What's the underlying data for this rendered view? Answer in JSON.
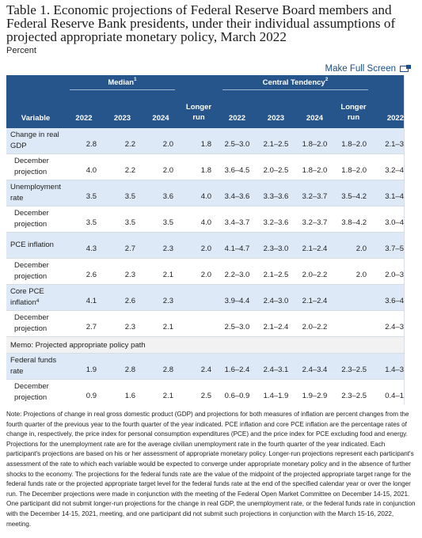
{
  "title": "Table 1. Economic projections of Federal Reserve Board members and Federal Reserve Bank presidents, under their individual assumptions of projected appropriate monetary policy, March 2022",
  "subtitle": "Percent",
  "fullscreen_label": "Make Full Screen",
  "header": {
    "median": "Median",
    "median_sup": "1",
    "central": "Central Tendency",
    "central_sup": "2",
    "variable": "Variable",
    "cols": [
      "2022",
      "2023",
      "2024",
      "Longer run",
      "2022",
      "2023",
      "2024",
      "Longer run",
      "2022"
    ]
  },
  "rows": [
    {
      "label": "Change in real GDP",
      "sup": "",
      "style": "blue",
      "indent": false,
      "median": [
        "2.8",
        "2.2",
        "2.0",
        "1.8"
      ],
      "central": [
        "2.5–3.0",
        "2.1–2.5",
        "1.8–2.0",
        "1.8–2.0"
      ],
      "range": "2.1–3"
    },
    {
      "label": "December projection",
      "sup": "",
      "style": "white",
      "indent": true,
      "median": [
        "4.0",
        "2.2",
        "2.0",
        "1.8"
      ],
      "central": [
        "3.6–4.5",
        "2.0–2.5",
        "1.8–2.0",
        "1.8–2.0"
      ],
      "range": "3.2–4"
    },
    {
      "label": "Unemployment rate",
      "sup": "",
      "style": "blue",
      "indent": false,
      "median": [
        "3.5",
        "3.5",
        "3.6",
        "4.0"
      ],
      "central": [
        "3.4–3.6",
        "3.3–3.6",
        "3.2–3.7",
        "3.5–4.2"
      ],
      "range": "3.1–4"
    },
    {
      "label": "December projection",
      "sup": "",
      "style": "white",
      "indent": true,
      "median": [
        "3.5",
        "3.5",
        "3.5",
        "4.0"
      ],
      "central": [
        "3.4–3.7",
        "3.2–3.6",
        "3.2–3.7",
        "3.8–4.2"
      ],
      "range": "3.0–4"
    },
    {
      "label": "PCE inflation",
      "sup": "",
      "style": "blue",
      "indent": false,
      "median": [
        "4.3",
        "2.7",
        "2.3",
        "2.0"
      ],
      "central": [
        "4.1–4.7",
        "2.3–3.0",
        "2.1–2.4",
        "2.0"
      ],
      "range": "3.7–5"
    },
    {
      "label": "December projection",
      "sup": "",
      "style": "white",
      "indent": true,
      "median": [
        "2.6",
        "2.3",
        "2.1",
        "2.0"
      ],
      "central": [
        "2.2–3.0",
        "2.1–2.5",
        "2.0–2.2",
        "2.0"
      ],
      "range": "2.0–3"
    },
    {
      "label": "Core PCE inflation",
      "sup": "4",
      "style": "blue",
      "indent": false,
      "median": [
        "4.1",
        "2.6",
        "2.3",
        ""
      ],
      "central": [
        "3.9–4.4",
        "2.4–3.0",
        "2.1–2.4",
        ""
      ],
      "range": "3.6–4"
    },
    {
      "label": "December projection",
      "sup": "",
      "style": "white",
      "indent": true,
      "median": [
        "2.7",
        "2.3",
        "2.1",
        ""
      ],
      "central": [
        "2.5–3.0",
        "2.1–2.4",
        "2.0–2.2",
        ""
      ],
      "range": "2.4–3"
    }
  ],
  "memo": "Memo: Projected appropriate policy path",
  "memo_rows": [
    {
      "label": "Federal funds rate",
      "sup": "",
      "style": "blue",
      "indent": false,
      "median": [
        "1.9",
        "2.8",
        "2.8",
        "2.4"
      ],
      "central": [
        "1.6–2.4",
        "2.4–3.1",
        "2.4–3.4",
        "2.3–2.5"
      ],
      "range": "1.4–3"
    },
    {
      "label": "December projection",
      "sup": "",
      "style": "white",
      "indent": true,
      "median": [
        "0.9",
        "1.6",
        "2.1",
        "2.5"
      ],
      "central": [
        "0.6–0.9",
        "1.4–1.9",
        "1.9–2.9",
        "2.3–2.5"
      ],
      "range": "0.4–1"
    }
  ],
  "note": "Note: Projections of change in real gross domestic product (GDP) and projections for both measures of inflation are percent changes from the fourth quarter of the previous year to the fourth quarter of the year indicated. PCE inflation and core PCE inflation are the percentage rates of change in, respectively, the price index for personal consumption expenditures (PCE) and the price index for PCE excluding food and energy. Projections for the unemployment rate are for the average civilian unemployment rate in the fourth quarter of the year indicated. Each participant's projections are based on his or her assessment of appropriate monetary policy. Longer-run projections represent each participant's assessment of the rate to which each variable would be expected to converge under appropriate monetary policy and in the absence of further shocks to the economy. The projections for the federal funds rate are the value of the midpoint of the projected appropriate target range for the federal funds rate or the projected appropriate target level for the federal funds rate at the end of the specified calendar year or over the longer run. The December projections were made in conjunction with the meeting of the Federal Open Market Committee on December 14-15, 2021. One participant did not submit longer-run projections for the change in real GDP, the unemployment rate, or the federal funds rate in conjunction with the December 14-15, 2021, meeting, and one participant did not submit such projections in conjunction with the March 15-16, 2022, meeting."
}
